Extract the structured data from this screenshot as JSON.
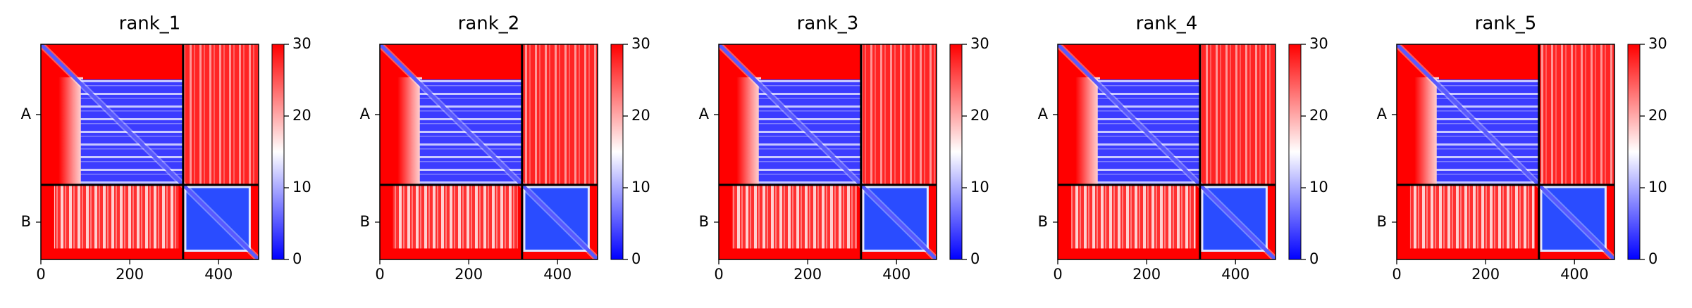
{
  "chart_data": [
    {
      "type": "heatmap",
      "title": "rank_1",
      "xlim": [
        0,
        490
      ],
      "xticks": [
        0,
        200,
        400
      ],
      "ylim": [
        490,
        0
      ],
      "yticks": [
        {
          "value": 160,
          "label": "A"
        },
        {
          "value": 405,
          "label": "B"
        }
      ],
      "chain_boundaries": [
        320
      ],
      "clim": [
        0,
        30
      ],
      "cticks": [
        0,
        10,
        20,
        30
      ],
      "colors": [
        "#0000ff",
        "#ffffff",
        "#ff0000"
      ]
    },
    {
      "type": "heatmap",
      "title": "rank_2",
      "xlim": [
        0,
        490
      ],
      "xticks": [
        0,
        200,
        400
      ],
      "ylim": [
        490,
        0
      ],
      "yticks": [
        {
          "value": 160,
          "label": "A"
        },
        {
          "value": 405,
          "label": "B"
        }
      ],
      "chain_boundaries": [
        320
      ],
      "clim": [
        0,
        30
      ],
      "cticks": [
        0,
        10,
        20,
        30
      ],
      "colors": [
        "#0000ff",
        "#ffffff",
        "#ff0000"
      ]
    },
    {
      "type": "heatmap",
      "title": "rank_3",
      "xlim": [
        0,
        490
      ],
      "xticks": [
        0,
        200,
        400
      ],
      "ylim": [
        490,
        0
      ],
      "yticks": [
        {
          "value": 160,
          "label": "A"
        },
        {
          "value": 405,
          "label": "B"
        }
      ],
      "chain_boundaries": [
        320
      ],
      "clim": [
        0,
        30
      ],
      "cticks": [
        0,
        10,
        20,
        30
      ],
      "colors": [
        "#0000ff",
        "#ffffff",
        "#ff0000"
      ]
    },
    {
      "type": "heatmap",
      "title": "rank_4",
      "xlim": [
        0,
        490
      ],
      "xticks": [
        0,
        200,
        400
      ],
      "ylim": [
        490,
        0
      ],
      "yticks": [
        {
          "value": 160,
          "label": "A"
        },
        {
          "value": 405,
          "label": "B"
        }
      ],
      "chain_boundaries": [
        320
      ],
      "clim": [
        0,
        30
      ],
      "cticks": [
        0,
        10,
        20,
        30
      ],
      "colors": [
        "#0000ff",
        "#ffffff",
        "#ff0000"
      ]
    },
    {
      "type": "heatmap",
      "title": "rank_5",
      "xlim": [
        0,
        490
      ],
      "xticks": [
        0,
        200,
        400
      ],
      "ylim": [
        490,
        0
      ],
      "yticks": [
        {
          "value": 160,
          "label": "A"
        },
        {
          "value": 405,
          "label": "B"
        }
      ],
      "chain_boundaries": [
        320
      ],
      "clim": [
        0,
        30
      ],
      "cticks": [
        0,
        10,
        20,
        30
      ],
      "colors": [
        "#0000ff",
        "#ffffff",
        "#ff0000"
      ]
    }
  ]
}
